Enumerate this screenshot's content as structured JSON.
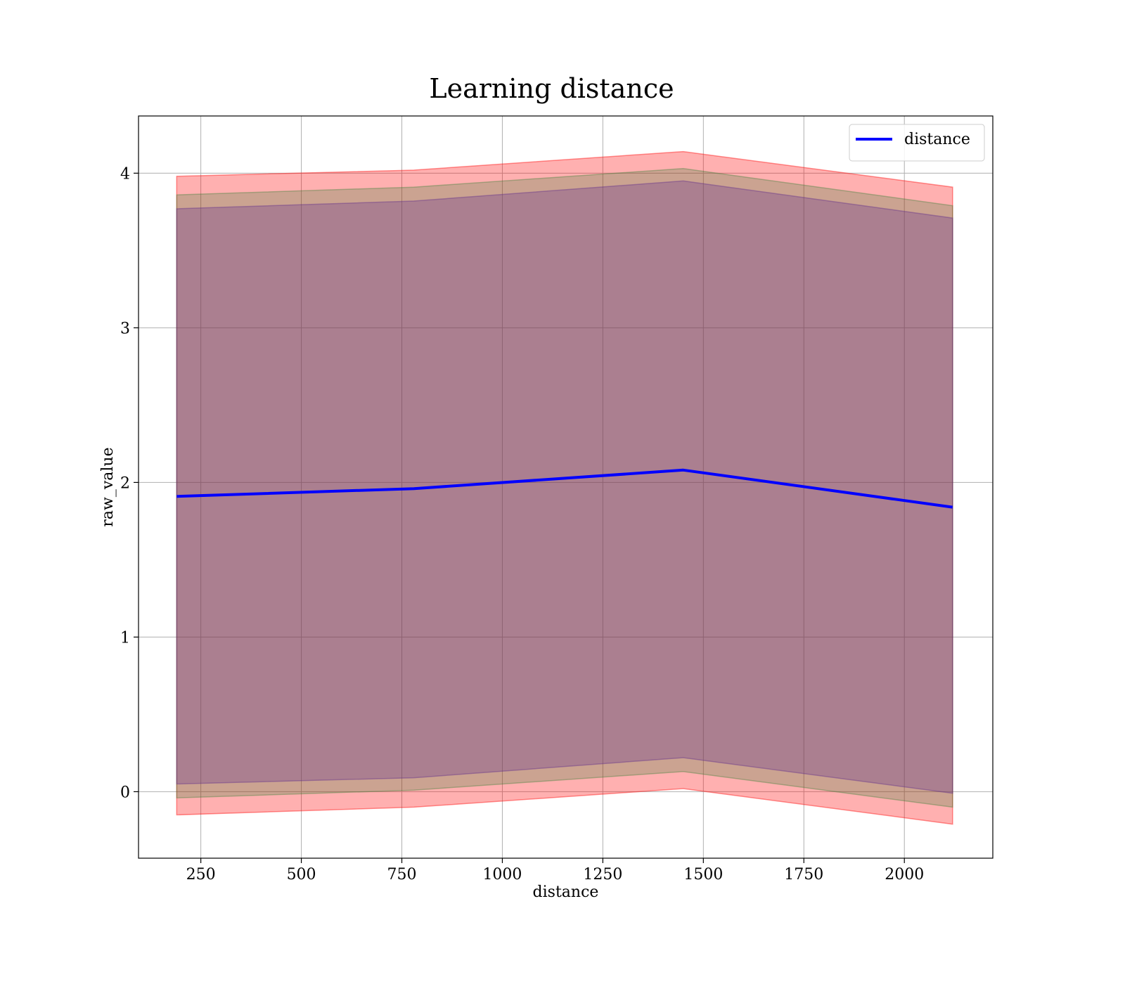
{
  "chart_data": {
    "type": "line",
    "title": "Learning distance",
    "xlabel": "distance",
    "ylabel": "raw_value",
    "xlim": [
      95,
      2220
    ],
    "ylim": [
      -0.43,
      4.37
    ],
    "xticks": [
      250,
      500,
      750,
      1000,
      1250,
      1500,
      1750,
      2000
    ],
    "yticks": [
      0,
      1,
      2,
      3,
      4
    ],
    "grid": true,
    "legend_position": "top-right",
    "x": [
      190,
      780,
      1450,
      2120
    ],
    "series": [
      {
        "name": "distance",
        "color": "#0000ff",
        "values": [
          1.91,
          1.96,
          2.08,
          1.84
        ]
      }
    ],
    "bands": [
      {
        "color": "#ff0000",
        "opacity": 0.31,
        "lower": [
          -0.15,
          -0.1,
          0.02,
          -0.21
        ],
        "upper": [
          3.98,
          4.02,
          4.14,
          3.91
        ]
      },
      {
        "color": "#2e7d32",
        "opacity": 0.25,
        "lower": [
          -0.04,
          0.01,
          0.13,
          -0.1
        ],
        "upper": [
          3.86,
          3.91,
          4.03,
          3.79
        ]
      },
      {
        "color": "#5c2a8c",
        "opacity": 0.29,
        "lower": [
          0.05,
          0.09,
          0.22,
          -0.01
        ],
        "upper": [
          3.77,
          3.82,
          3.95,
          3.71
        ]
      }
    ]
  }
}
